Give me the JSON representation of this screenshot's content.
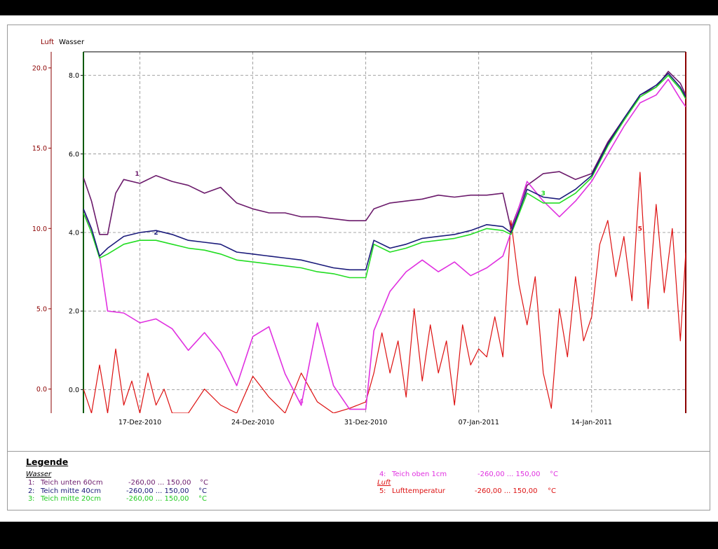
{
  "axes": {
    "left_title_air": "Luft",
    "left_title_water": "Wasser"
  },
  "legend": {
    "title": "Legende",
    "group_water": "Wasser",
    "group_air": "Luft"
  },
  "colors": {
    "series1": "#6b1a6b",
    "series2": "#1a1a7a",
    "series3": "#22dd22",
    "series4": "#e030e0",
    "series5": "#dd1111",
    "air_axis": "#8b0000",
    "water_axis": "#000000"
  },
  "chart_data": {
    "type": "line",
    "x_axis": {
      "type": "date",
      "range": [
        "2010-12-13T12:00",
        "2011-01-19T20:00"
      ],
      "ticks": [
        "17-Dez-2010",
        "24-Dez-2010",
        "31-Dez-2010",
        "07-Jan-2011",
        "14-Jan-2011"
      ]
    },
    "y_axis_air": {
      "unit": "°C",
      "range": [
        -1.5,
        21.0
      ],
      "ticks": [
        "0.0",
        "5.0",
        "10.0",
        "15.0",
        "20.0"
      ]
    },
    "y_axis_water": {
      "unit": "°C",
      "range": [
        -0.6,
        8.6
      ],
      "ticks": [
        "0.0",
        "2.0",
        "4.0",
        "6.0",
        "8.0"
      ]
    },
    "grid": true,
    "series": [
      {
        "id": "1",
        "name": "Teich unten 60cm",
        "range_label": "-260,00 ... 150,00",
        "unit": "°C",
        "axis": "water",
        "points": [
          [
            "2010-12-13T12:00",
            5.4
          ],
          [
            "2010-12-14T00:00",
            4.8
          ],
          [
            "2010-12-14T12:00",
            3.95
          ],
          [
            "2010-12-15T00:00",
            3.95
          ],
          [
            "2010-12-15T12:00",
            5.0
          ],
          [
            "2010-12-16T00:00",
            5.35
          ],
          [
            "2010-12-17T00:00",
            5.25
          ],
          [
            "2010-12-18T00:00",
            5.45
          ],
          [
            "2010-12-19T00:00",
            5.3
          ],
          [
            "2010-12-20T00:00",
            5.2
          ],
          [
            "2010-12-21T00:00",
            5.0
          ],
          [
            "2010-12-22T00:00",
            5.15
          ],
          [
            "2010-12-23T00:00",
            4.75
          ],
          [
            "2010-12-24T00:00",
            4.6
          ],
          [
            "2010-12-25T00:00",
            4.5
          ],
          [
            "2010-12-26T00:00",
            4.5
          ],
          [
            "2010-12-27T00:00",
            4.4
          ],
          [
            "2010-12-28T00:00",
            4.4
          ],
          [
            "2010-12-29T00:00",
            4.35
          ],
          [
            "2010-12-30T00:00",
            4.3
          ],
          [
            "2010-12-31T00:00",
            4.3
          ],
          [
            "2010-12-31T12:00",
            4.6
          ],
          [
            "2011-01-01T12:00",
            4.75
          ],
          [
            "2011-01-02T12:00",
            4.8
          ],
          [
            "2011-01-03T12:00",
            4.85
          ],
          [
            "2011-01-04T12:00",
            4.95
          ],
          [
            "2011-01-05T12:00",
            4.9
          ],
          [
            "2011-01-06T12:00",
            4.95
          ],
          [
            "2011-01-07T12:00",
            4.95
          ],
          [
            "2011-01-08T12:00",
            5.0
          ],
          [
            "2011-01-09T00:00",
            4.1
          ],
          [
            "2011-01-10T00:00",
            5.2
          ],
          [
            "2011-01-11T00:00",
            5.5
          ],
          [
            "2011-01-12T00:00",
            5.55
          ],
          [
            "2011-01-13T00:00",
            5.35
          ],
          [
            "2011-01-14T00:00",
            5.5
          ],
          [
            "2011-01-15T00:00",
            6.3
          ],
          [
            "2011-01-16T00:00",
            6.9
          ],
          [
            "2011-01-17T00:00",
            7.5
          ],
          [
            "2011-01-18T00:00",
            7.7
          ],
          [
            "2011-01-18T18:00",
            8.1
          ],
          [
            "2011-01-19T12:00",
            7.8
          ],
          [
            "2011-01-19T20:00",
            7.5
          ]
        ]
      },
      {
        "id": "2",
        "name": "Teich mitte 40cm",
        "range_label": "-260,00 ... 150,00",
        "unit": "°C",
        "axis": "water",
        "points": [
          [
            "2010-12-13T12:00",
            4.6
          ],
          [
            "2010-12-14T00:00",
            4.1
          ],
          [
            "2010-12-14T12:00",
            3.4
          ],
          [
            "2010-12-15T00:00",
            3.6
          ],
          [
            "2010-12-16T00:00",
            3.9
          ],
          [
            "2010-12-17T00:00",
            4.0
          ],
          [
            "2010-12-18T00:00",
            4.05
          ],
          [
            "2010-12-19T00:00",
            3.95
          ],
          [
            "2010-12-20T00:00",
            3.8
          ],
          [
            "2010-12-21T00:00",
            3.75
          ],
          [
            "2010-12-22T00:00",
            3.7
          ],
          [
            "2010-12-23T00:00",
            3.5
          ],
          [
            "2010-12-24T00:00",
            3.45
          ],
          [
            "2010-12-25T00:00",
            3.4
          ],
          [
            "2010-12-26T00:00",
            3.35
          ],
          [
            "2010-12-27T00:00",
            3.3
          ],
          [
            "2010-12-28T00:00",
            3.2
          ],
          [
            "2010-12-29T00:00",
            3.1
          ],
          [
            "2010-12-30T00:00",
            3.05
          ],
          [
            "2010-12-31T00:00",
            3.05
          ],
          [
            "2010-12-31T12:00",
            3.8
          ],
          [
            "2011-01-01T12:00",
            3.6
          ],
          [
            "2011-01-02T12:00",
            3.7
          ],
          [
            "2011-01-03T12:00",
            3.85
          ],
          [
            "2011-01-04T12:00",
            3.9
          ],
          [
            "2011-01-05T12:00",
            3.95
          ],
          [
            "2011-01-06T12:00",
            4.05
          ],
          [
            "2011-01-07T12:00",
            4.2
          ],
          [
            "2011-01-08T12:00",
            4.15
          ],
          [
            "2011-01-09T00:00",
            4.0
          ],
          [
            "2011-01-10T00:00",
            5.1
          ],
          [
            "2011-01-11T00:00",
            4.9
          ],
          [
            "2011-01-12T00:00",
            4.85
          ],
          [
            "2011-01-13T00:00",
            5.1
          ],
          [
            "2011-01-14T00:00",
            5.45
          ],
          [
            "2011-01-15T00:00",
            6.25
          ],
          [
            "2011-01-16T00:00",
            6.9
          ],
          [
            "2011-01-17T00:00",
            7.5
          ],
          [
            "2011-01-18T00:00",
            7.75
          ],
          [
            "2011-01-18T18:00",
            8.05
          ],
          [
            "2011-01-19T12:00",
            7.7
          ],
          [
            "2011-01-19T20:00",
            7.45
          ]
        ]
      },
      {
        "id": "3",
        "name": "Teich mitte 20cm",
        "range_label": "-260,00 ... 150,00",
        "unit": "°C",
        "axis": "water",
        "points": [
          [
            "2010-12-13T12:00",
            4.5
          ],
          [
            "2010-12-14T00:00",
            4.0
          ],
          [
            "2010-12-14T12:00",
            3.35
          ],
          [
            "2010-12-15T00:00",
            3.45
          ],
          [
            "2010-12-16T00:00",
            3.7
          ],
          [
            "2010-12-17T00:00",
            3.8
          ],
          [
            "2010-12-18T00:00",
            3.8
          ],
          [
            "2010-12-19T00:00",
            3.7
          ],
          [
            "2010-12-20T00:00",
            3.6
          ],
          [
            "2010-12-21T00:00",
            3.55
          ],
          [
            "2010-12-22T00:00",
            3.45
          ],
          [
            "2010-12-23T00:00",
            3.3
          ],
          [
            "2010-12-24T00:00",
            3.25
          ],
          [
            "2010-12-25T00:00",
            3.2
          ],
          [
            "2010-12-26T00:00",
            3.15
          ],
          [
            "2010-12-27T00:00",
            3.1
          ],
          [
            "2010-12-28T00:00",
            3.0
          ],
          [
            "2010-12-29T00:00",
            2.95
          ],
          [
            "2010-12-30T00:00",
            2.85
          ],
          [
            "2010-12-31T00:00",
            2.85
          ],
          [
            "2010-12-31T12:00",
            3.7
          ],
          [
            "2011-01-01T12:00",
            3.5
          ],
          [
            "2011-01-02T12:00",
            3.6
          ],
          [
            "2011-01-03T12:00",
            3.75
          ],
          [
            "2011-01-04T12:00",
            3.8
          ],
          [
            "2011-01-05T12:00",
            3.85
          ],
          [
            "2011-01-06T12:00",
            3.95
          ],
          [
            "2011-01-07T12:00",
            4.1
          ],
          [
            "2011-01-08T12:00",
            4.05
          ],
          [
            "2011-01-09T00:00",
            3.95
          ],
          [
            "2011-01-10T00:00",
            5.0
          ],
          [
            "2011-01-11T00:00",
            4.75
          ],
          [
            "2011-01-12T00:00",
            4.75
          ],
          [
            "2011-01-13T00:00",
            5.0
          ],
          [
            "2011-01-14T00:00",
            5.4
          ],
          [
            "2011-01-15T00:00",
            6.2
          ],
          [
            "2011-01-16T00:00",
            6.85
          ],
          [
            "2011-01-17T00:00",
            7.45
          ],
          [
            "2011-01-18T00:00",
            7.7
          ],
          [
            "2011-01-18T18:00",
            8.0
          ],
          [
            "2011-01-19T12:00",
            7.65
          ],
          [
            "2011-01-19T20:00",
            7.4
          ]
        ]
      },
      {
        "id": "4",
        "name": "Teich oben 1cm",
        "range_label": "-260,00 ... 150,00",
        "unit": "°C",
        "axis": "water",
        "points": [
          [
            "2010-12-13T12:00",
            4.6
          ],
          [
            "2010-12-14T00:00",
            4.0
          ],
          [
            "2010-12-14T12:00",
            3.4
          ],
          [
            "2010-12-15T00:00",
            2.0
          ],
          [
            "2010-12-16T00:00",
            1.95
          ],
          [
            "2010-12-17T00:00",
            1.7
          ],
          [
            "2010-12-18T00:00",
            1.8
          ],
          [
            "2010-12-19T00:00",
            1.55
          ],
          [
            "2010-12-20T00:00",
            1.0
          ],
          [
            "2010-12-21T00:00",
            1.45
          ],
          [
            "2010-12-22T00:00",
            0.95
          ],
          [
            "2010-12-23T00:00",
            0.1
          ],
          [
            "2010-12-24T00:00",
            1.35
          ],
          [
            "2010-12-25T00:00",
            1.6
          ],
          [
            "2010-12-26T00:00",
            0.4
          ],
          [
            "2010-12-27T00:00",
            -0.4
          ],
          [
            "2010-12-28T00:00",
            1.7
          ],
          [
            "2010-12-29T00:00",
            0.1
          ],
          [
            "2010-12-30T00:00",
            -0.5
          ],
          [
            "2010-12-31T00:00",
            -0.5
          ],
          [
            "2010-12-31T12:00",
            1.5
          ],
          [
            "2011-01-01T12:00",
            2.5
          ],
          [
            "2011-01-02T12:00",
            3.0
          ],
          [
            "2011-01-03T12:00",
            3.3
          ],
          [
            "2011-01-04T12:00",
            3.0
          ],
          [
            "2011-01-05T12:00",
            3.25
          ],
          [
            "2011-01-06T12:00",
            2.9
          ],
          [
            "2011-01-07T12:00",
            3.1
          ],
          [
            "2011-01-08T12:00",
            3.4
          ],
          [
            "2011-01-09T00:00",
            4.0
          ],
          [
            "2011-01-10T00:00",
            5.3
          ],
          [
            "2011-01-11T00:00",
            4.8
          ],
          [
            "2011-01-12T00:00",
            4.4
          ],
          [
            "2011-01-13T00:00",
            4.8
          ],
          [
            "2011-01-14T00:00",
            5.3
          ],
          [
            "2011-01-15T00:00",
            6.0
          ],
          [
            "2011-01-16T00:00",
            6.7
          ],
          [
            "2011-01-17T00:00",
            7.3
          ],
          [
            "2011-01-18T00:00",
            7.5
          ],
          [
            "2011-01-18T18:00",
            7.9
          ],
          [
            "2011-01-19T12:00",
            7.4
          ],
          [
            "2011-01-19T20:00",
            7.2
          ]
        ]
      },
      {
        "id": "5",
        "name": "Lufttemperatur",
        "range_label": "-260,00 ... 150,00",
        "unit": "°C",
        "axis": "air",
        "points": [
          [
            "2010-12-13T12:00",
            0.0
          ],
          [
            "2010-12-14T00:00",
            -1.5
          ],
          [
            "2010-12-14T12:00",
            1.5
          ],
          [
            "2010-12-15T00:00",
            -1.5
          ],
          [
            "2010-12-15T12:00",
            2.5
          ],
          [
            "2010-12-16T00:00",
            -1.0
          ],
          [
            "2010-12-16T12:00",
            0.5
          ],
          [
            "2010-12-17T00:00",
            -1.5
          ],
          [
            "2010-12-17T12:00",
            1.0
          ],
          [
            "2010-12-18T00:00",
            -1.0
          ],
          [
            "2010-12-18T12:00",
            0.0
          ],
          [
            "2010-12-19T00:00",
            -1.5
          ],
          [
            "2010-12-20T00:00",
            -1.5
          ],
          [
            "2010-12-21T00:00",
            0.0
          ],
          [
            "2010-12-22T00:00",
            -1.0
          ],
          [
            "2010-12-23T00:00",
            -1.5
          ],
          [
            "2010-12-24T00:00",
            0.8
          ],
          [
            "2010-12-25T00:00",
            -0.5
          ],
          [
            "2010-12-26T00:00",
            -1.5
          ],
          [
            "2010-12-27T00:00",
            1.0
          ],
          [
            "2010-12-28T00:00",
            -0.8
          ],
          [
            "2010-12-29T00:00",
            -1.5
          ],
          [
            "2010-12-30T00:00",
            -1.2
          ],
          [
            "2010-12-31T00:00",
            -0.8
          ],
          [
            "2010-12-31T12:00",
            1.0
          ],
          [
            "2011-01-01T00:00",
            3.5
          ],
          [
            "2011-01-01T12:00",
            1.0
          ],
          [
            "2011-01-02T00:00",
            3.0
          ],
          [
            "2011-01-02T12:00",
            -0.5
          ],
          [
            "2011-01-03T00:00",
            5.0
          ],
          [
            "2011-01-03T12:00",
            0.5
          ],
          [
            "2011-01-04T00:00",
            4.0
          ],
          [
            "2011-01-04T12:00",
            1.0
          ],
          [
            "2011-01-05T00:00",
            3.0
          ],
          [
            "2011-01-05T12:00",
            -1.0
          ],
          [
            "2011-01-06T00:00",
            4.0
          ],
          [
            "2011-01-06T12:00",
            1.5
          ],
          [
            "2011-01-07T00:00",
            2.5
          ],
          [
            "2011-01-07T12:00",
            2.0
          ],
          [
            "2011-01-08T00:00",
            4.5
          ],
          [
            "2011-01-08T12:00",
            2.0
          ],
          [
            "2011-01-09T00:00",
            10.5
          ],
          [
            "2011-01-09T12:00",
            6.5
          ],
          [
            "2011-01-10T00:00",
            4.0
          ],
          [
            "2011-01-10T12:00",
            7.0
          ],
          [
            "2011-01-11T00:00",
            1.0
          ],
          [
            "2011-01-11T12:00",
            -1.2
          ],
          [
            "2011-01-12T00:00",
            5.0
          ],
          [
            "2011-01-12T12:00",
            2.0
          ],
          [
            "2011-01-13T00:00",
            7.0
          ],
          [
            "2011-01-13T12:00",
            3.0
          ],
          [
            "2011-01-14T00:00",
            4.5
          ],
          [
            "2011-01-14T12:00",
            9.0
          ],
          [
            "2011-01-15T00:00",
            10.5
          ],
          [
            "2011-01-15T12:00",
            7.0
          ],
          [
            "2011-01-16T00:00",
            9.5
          ],
          [
            "2011-01-16T12:00",
            5.5
          ],
          [
            "2011-01-17T00:00",
            13.5
          ],
          [
            "2011-01-17T12:00",
            5.0
          ],
          [
            "2011-01-18T00:00",
            11.5
          ],
          [
            "2011-01-18T12:00",
            6.0
          ],
          [
            "2011-01-19T00:00",
            10.0
          ],
          [
            "2011-01-19T12:00",
            3.0
          ],
          [
            "2011-01-19T20:00",
            8.5
          ]
        ]
      }
    ]
  }
}
